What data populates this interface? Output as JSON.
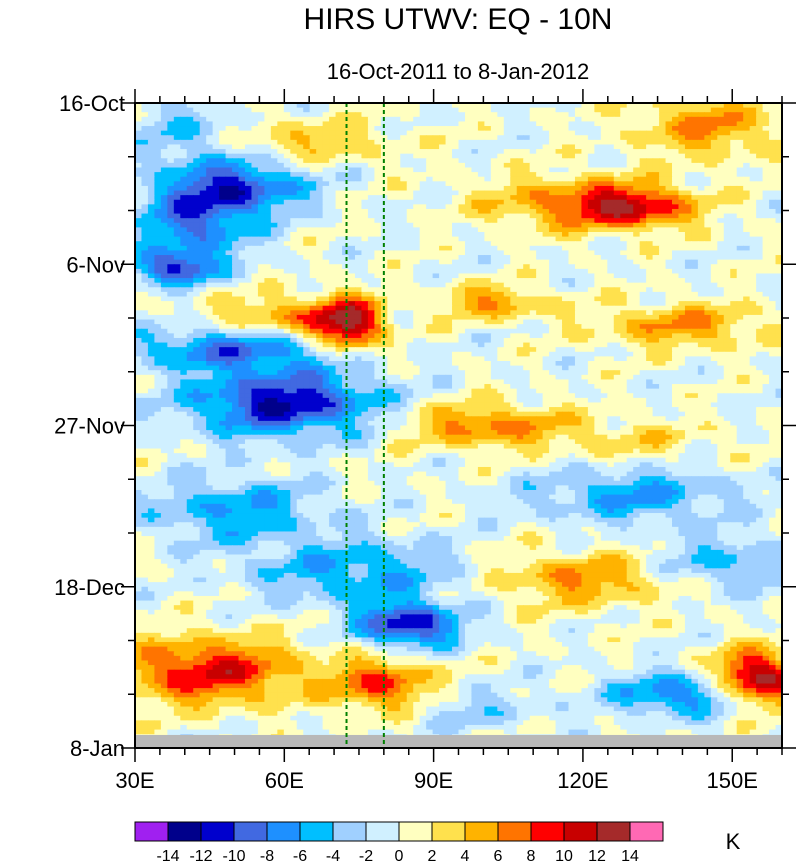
{
  "chart_data": {
    "type": "heatmap",
    "title": "HIRS UTWV: EQ - 10N",
    "subtitle": "16-Oct-2011 to 8-Jan-2012",
    "xlabel": "",
    "ylabel": "",
    "xlim": [
      30,
      160
    ],
    "x_ticks": [
      {
        "value": 30,
        "label": "30E"
      },
      {
        "value": 60,
        "label": "60E"
      },
      {
        "value": 90,
        "label": "90E"
      },
      {
        "value": 120,
        "label": "120E"
      },
      {
        "value": 150,
        "label": "150E"
      }
    ],
    "y_range_days": [
      0,
      84
    ],
    "y_ticks": [
      {
        "day": 0,
        "label": "16-Oct"
      },
      {
        "day": 21,
        "label": "6-Nov"
      },
      {
        "day": 42,
        "label": "27-Nov"
      },
      {
        "day": 63,
        "label": "18-Dec"
      },
      {
        "day": 84,
        "label": "8-Jan"
      }
    ],
    "reference_lines_lon": [
      72.5,
      80
    ],
    "missing_data_days": [
      82.3,
      84
    ],
    "colorbar": {
      "levels": [
        -14,
        -12,
        -10,
        -8,
        -6,
        -4,
        -2,
        0,
        2,
        4,
        6,
        8,
        10,
        12,
        14
      ],
      "labels": [
        "-14",
        "-12",
        "-10",
        "-8",
        "-6",
        "-4",
        "-2",
        "0",
        "2",
        "4",
        "6",
        "8",
        "10",
        "12",
        "14"
      ],
      "colors": [
        "#a020f0",
        "#00008b",
        "#0000cd",
        "#4169e1",
        "#1e90ff",
        "#00bfff",
        "#a0d0ff",
        "#d0f0ff",
        "#ffffc0",
        "#ffe14d",
        "#ffb300",
        "#ff7400",
        "#ff0000",
        "#c80000",
        "#a52a2a",
        "#ff69b4"
      ],
      "units": "K"
    },
    "anomaly_features": [
      {
        "lon": 40,
        "day": 4,
        "value": -4,
        "sx": 8,
        "sy": 3
      },
      {
        "lon": 50,
        "day": 11,
        "value": -10,
        "sx": 10,
        "sy": 2.5
      },
      {
        "lon": 42,
        "day": 16,
        "value": -8,
        "sx": 8,
        "sy": 3
      },
      {
        "lon": 38,
        "day": 21.5,
        "value": -10,
        "sx": 6,
        "sy": 1.5
      },
      {
        "lon": 65,
        "day": 5,
        "value": 4,
        "sx": 12,
        "sy": 2
      },
      {
        "lon": 145,
        "day": 3,
        "value": 6,
        "sx": 10,
        "sy": 3
      },
      {
        "lon": 130,
        "day": 13.5,
        "value": 10,
        "sx": 9,
        "sy": 2
      },
      {
        "lon": 115,
        "day": 13,
        "value": 5,
        "sx": 12,
        "sy": 2.5
      },
      {
        "lon": 73,
        "day": 29,
        "value": 12,
        "sx": 5,
        "sy": 2.5
      },
      {
        "lon": 60,
        "day": 28,
        "value": 6,
        "sx": 10,
        "sy": 2
      },
      {
        "lon": 140,
        "day": 29,
        "value": 6,
        "sx": 12,
        "sy": 2
      },
      {
        "lon": 102,
        "day": 26,
        "value": 6,
        "sx": 8,
        "sy": 1.5
      },
      {
        "lon": 60,
        "day": 39,
        "value": -12,
        "sx": 13,
        "sy": 3
      },
      {
        "lon": 50,
        "day": 32,
        "value": -8,
        "sx": 15,
        "sy": 2
      },
      {
        "lon": 100,
        "day": 42,
        "value": 7,
        "sx": 11,
        "sy": 2
      },
      {
        "lon": 130,
        "day": 44,
        "value": 3,
        "sx": 12,
        "sy": 2
      },
      {
        "lon": 50,
        "day": 53,
        "value": -6,
        "sx": 12,
        "sy": 3
      },
      {
        "lon": 75,
        "day": 61,
        "value": -6,
        "sx": 15,
        "sy": 3
      },
      {
        "lon": 85,
        "day": 68,
        "value": -12,
        "sx": 7,
        "sy": 2
      },
      {
        "lon": 130,
        "day": 51,
        "value": -6,
        "sx": 14,
        "sy": 2.5
      },
      {
        "lon": 120,
        "day": 62,
        "value": 6,
        "sx": 13,
        "sy": 2.5
      },
      {
        "lon": 148,
        "day": 60,
        "value": -5,
        "sx": 10,
        "sy": 2.5
      },
      {
        "lon": 45,
        "day": 74,
        "value": 10,
        "sx": 13,
        "sy": 3
      },
      {
        "lon": 80,
        "day": 76,
        "value": 9,
        "sx": 7,
        "sy": 2.5
      },
      {
        "lon": 155,
        "day": 75,
        "value": 14,
        "sx": 6,
        "sy": 2.5
      },
      {
        "lon": 140,
        "day": 77,
        "value": -8,
        "sx": 10,
        "sy": 2
      },
      {
        "lon": 95,
        "day": 79,
        "value": -3,
        "sx": 12,
        "sy": 2
      }
    ]
  }
}
